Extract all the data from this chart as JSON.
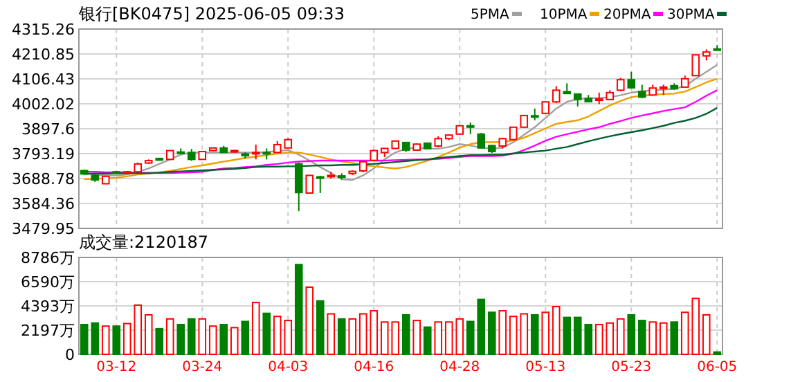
{
  "chart_data": [
    {
      "type": "candlestick",
      "title": "银行[BK0475] 2025-06-05 09:33",
      "categories": [
        null,
        null,
        null,
        null,
        null,
        null,
        null,
        null,
        null,
        null,
        null,
        null,
        null,
        null,
        null,
        null,
        null,
        null,
        null,
        null,
        null,
        null,
        null,
        null,
        null,
        null,
        null,
        null,
        null,
        null,
        null,
        null,
        null,
        null,
        null,
        null,
        null,
        null,
        null,
        null,
        null,
        null,
        null,
        null,
        null,
        null,
        null,
        null,
        null,
        null,
        null,
        null,
        null,
        null,
        null,
        null,
        null,
        null,
        null,
        null
      ],
      "ohlc": [
        [
          3722,
          3726,
          3704,
          3708
        ],
        [
          3702,
          3706,
          3675,
          3683
        ],
        [
          3667,
          3700,
          3665,
          3698
        ],
        [
          3717,
          3721,
          3711,
          3714
        ],
        [
          3711,
          3721,
          3709,
          3717
        ],
        [
          3717,
          3756,
          3715,
          3750
        ],
        [
          3754,
          3769,
          3750,
          3764
        ],
        [
          3773,
          3776,
          3765,
          3766
        ],
        [
          3769,
          3808,
          3767,
          3806
        ],
        [
          3800,
          3815,
          3790,
          3797
        ],
        [
          3798,
          3813,
          3763,
          3769
        ],
        [
          3769,
          3804,
          3767,
          3802
        ],
        [
          3806,
          3818,
          3804,
          3817
        ],
        [
          3817,
          3826,
          3796,
          3798
        ],
        [
          3802,
          3810,
          3798,
          3806
        ],
        [
          3792,
          3798,
          3773,
          3785
        ],
        [
          3795,
          3831,
          3769,
          3798
        ],
        [
          3798,
          3815,
          3769,
          3795
        ],
        [
          3798,
          3846,
          3796,
          3831
        ],
        [
          3817,
          3858,
          3815,
          3852
        ],
        [
          3750,
          3756,
          3552,
          3630
        ],
        [
          3628,
          3702,
          3625,
          3702
        ],
        [
          3696,
          3700,
          3628,
          3692
        ],
        [
          3698,
          3717,
          3688,
          3702
        ],
        [
          3700,
          3711,
          3685,
          3696
        ],
        [
          3710,
          3723,
          3704,
          3719
        ],
        [
          3721,
          3763,
          3715,
          3759
        ],
        [
          3765,
          3810,
          3763,
          3806
        ],
        [
          3798,
          3817,
          3779,
          3815
        ],
        [
          3815,
          3848,
          3812,
          3846
        ],
        [
          3840,
          3840,
          3800,
          3808
        ],
        [
          3808,
          3836,
          3806,
          3833
        ],
        [
          3837,
          3840,
          3812,
          3814
        ],
        [
          3825,
          3866,
          3820,
          3856
        ],
        [
          3856,
          3873,
          3850,
          3871
        ],
        [
          3875,
          3912,
          3872,
          3910
        ],
        [
          3910,
          3924,
          3875,
          3904
        ],
        [
          3875,
          3880,
          3815,
          3817
        ],
        [
          3827,
          3830,
          3796,
          3802
        ],
        [
          3825,
          3860,
          3815,
          3856
        ],
        [
          3852,
          3906,
          3850,
          3904
        ],
        [
          3904,
          3955,
          3902,
          3953
        ],
        [
          3952,
          3982,
          3933,
          3948
        ],
        [
          3962,
          4012,
          3960,
          4010
        ],
        [
          4010,
          4076,
          4005,
          4059
        ],
        [
          4053,
          4088,
          4043,
          4045
        ],
        [
          4043,
          4045,
          3991,
          4020
        ],
        [
          4024,
          4039,
          4008,
          4011
        ],
        [
          4018,
          4049,
          4001,
          4022
        ],
        [
          4020,
          4059,
          4018,
          4049
        ],
        [
          4059,
          4111,
          4055,
          4103
        ],
        [
          4103,
          4136,
          4066,
          4069
        ],
        [
          4053,
          4082,
          4025,
          4030
        ],
        [
          4039,
          4082,
          4037,
          4068
        ],
        [
          4068,
          4082,
          4039,
          4072
        ],
        [
          4078,
          4088,
          4060,
          4065
        ],
        [
          4072,
          4120,
          4070,
          4107
        ],
        [
          4120,
          4210,
          4118,
          4207
        ],
        [
          4203,
          4230,
          4184,
          4219
        ],
        [
          4232,
          4248,
          4226,
          4230
        ]
      ],
      "series": [
        {
          "name": "5PMA",
          "type": "line",
          "color": "#a0a0a0",
          "values": [
            3712,
            3706,
            3702,
            3702,
            3706,
            3717,
            3731,
            3750,
            3769,
            3789,
            3798,
            3798,
            3798,
            3798,
            3798,
            3798,
            3798,
            3800,
            3804,
            3808,
            3789,
            3764,
            3737,
            3712,
            3686,
            3683,
            3702,
            3731,
            3769,
            3798,
            3814,
            3818,
            3814,
            3814,
            3821,
            3833,
            3827,
            3818,
            3814,
            3818,
            3841,
            3872,
            3904,
            3943,
            3982,
            4010,
            4022,
            4026,
            4026,
            4030,
            4038,
            4049,
            4055,
            4059,
            4061,
            4065,
            4076,
            4107,
            4136,
            4165
          ]
        },
        {
          "name": "10PMA",
          "type": "line",
          "color": "#f0a000",
          "values": [
            3686,
            3688,
            3690,
            3692,
            3698,
            3706,
            3710,
            3715,
            3721,
            3729,
            3737,
            3744,
            3752,
            3760,
            3767,
            3775,
            3781,
            3787,
            3793,
            3798,
            3798,
            3789,
            3779,
            3769,
            3760,
            3754,
            3746,
            3740,
            3735,
            3731,
            3737,
            3750,
            3764,
            3779,
            3798,
            3818,
            3833,
            3841,
            3841,
            3843,
            3848,
            3860,
            3879,
            3899,
            3918,
            3926,
            3933,
            3949,
            3972,
            3995,
            4014,
            4030,
            4036,
            4039,
            4043,
            4045,
            4053,
            4072,
            4092,
            4107
          ]
        },
        {
          "name": "20PMA",
          "type": "line",
          "color": "#ff00ff",
          "values": [
            3717,
            3717,
            3715,
            3715,
            3715,
            3713,
            3713,
            3712,
            3712,
            3713,
            3715,
            3717,
            3725,
            3731,
            3733,
            3737,
            3740,
            3746,
            3750,
            3756,
            3760,
            3762,
            3764,
            3764,
            3764,
            3764,
            3764,
            3764,
            3764,
            3766,
            3767,
            3769,
            3769,
            3771,
            3775,
            3779,
            3783,
            3783,
            3783,
            3785,
            3793,
            3808,
            3827,
            3847,
            3864,
            3875,
            3885,
            3895,
            3904,
            3918,
            3930,
            3943,
            3953,
            3962,
            3972,
            3980,
            3987,
            4010,
            4036,
            4059
          ]
        },
        {
          "name": "30PMA",
          "type": "line",
          "color": "#006030",
          "values": [
            3708,
            3710,
            3710,
            3711,
            3711,
            3711,
            3711,
            3713,
            3717,
            3719,
            3721,
            3723,
            3725,
            3727,
            3729,
            3733,
            3737,
            3739,
            3739,
            3740,
            3740,
            3742,
            3744,
            3744,
            3746,
            3746,
            3748,
            3750,
            3754,
            3758,
            3762,
            3766,
            3769,
            3775,
            3779,
            3783,
            3787,
            3787,
            3789,
            3789,
            3794,
            3798,
            3802,
            3806,
            3814,
            3821,
            3833,
            3845,
            3856,
            3866,
            3875,
            3883,
            3891,
            3900,
            3910,
            3922,
            3931,
            3943,
            3960,
            3985
          ]
        }
      ],
      "ylim": [
        3479.95,
        4315.26
      ],
      "yticks": [
        3479.95,
        3584.36,
        3688.78,
        3793.19,
        3897.6,
        4002.02,
        4106.43,
        4210.85,
        4315.26
      ],
      "grid": true,
      "legend": "top right"
    },
    {
      "type": "bar",
      "title": "成交量:2120187",
      "categories": [
        null,
        null,
        null,
        "03-12",
        null,
        null,
        null,
        null,
        null,
        null,
        null,
        "03-24",
        null,
        null,
        null,
        null,
        null,
        null,
        null,
        "04-03",
        null,
        null,
        null,
        null,
        null,
        null,
        null,
        "04-16",
        null,
        null,
        null,
        null,
        null,
        null,
        null,
        "04-28",
        null,
        null,
        null,
        null,
        null,
        null,
        null,
        "05-13",
        null,
        null,
        null,
        null,
        null,
        null,
        null,
        "05-23",
        null,
        null,
        null,
        null,
        null,
        null,
        null,
        "06-05"
      ],
      "values": [
        2700,
        2840,
        2560,
        2560,
        2790,
        4460,
        3580,
        2330,
        3210,
        2700,
        3210,
        3210,
        2560,
        2700,
        2420,
        2980,
        4700,
        3720,
        3440,
        3070,
        8140,
        6090,
        4840,
        3670,
        3210,
        3210,
        3670,
        3950,
        2930,
        2930,
        3580,
        3070,
        2470,
        2930,
        2930,
        3210,
        2980,
        4980,
        3810,
        3950,
        3440,
        3670,
        3580,
        3810,
        4330,
        3350,
        3350,
        2700,
        2700,
        2840,
        3210,
        3580,
        3070,
        2930,
        2840,
        2930,
        3810,
        5070,
        3580,
        210
      ],
      "colors": [
        "#008000",
        "#008000",
        "#ff0000",
        "#008000",
        "#ff0000",
        "#ff0000",
        "#ff0000",
        "#008000",
        "#ff0000",
        "#008000",
        "#008000",
        "#ff0000",
        "#ff0000",
        "#008000",
        "#ff0000",
        "#008000",
        "#ff0000",
        "#008000",
        "#ff0000",
        "#ff0000",
        "#008000",
        "#ff0000",
        "#008000",
        "#ff0000",
        "#008000",
        "#ff0000",
        "#ff0000",
        "#ff0000",
        "#ff0000",
        "#ff0000",
        "#008000",
        "#ff0000",
        "#008000",
        "#ff0000",
        "#ff0000",
        "#ff0000",
        "#008000",
        "#008000",
        "#008000",
        "#ff0000",
        "#ff0000",
        "#ff0000",
        "#008000",
        "#ff0000",
        "#ff0000",
        "#008000",
        "#008000",
        "#008000",
        "#ff0000",
        "#ff0000",
        "#ff0000",
        "#008000",
        "#008000",
        "#ff0000",
        "#ff0000",
        "#008000",
        "#ff0000",
        "#ff0000",
        "#ff0000",
        "#008000"
      ],
      "ylim": [
        0,
        8786
      ],
      "yticks": [
        0,
        {
          "value": 2197,
          "label": "2197万"
        },
        {
          "value": 4393,
          "label": "4393万"
        },
        {
          "value": 6590,
          "label": "6590万"
        },
        {
          "value": 8786,
          "label": "8786万"
        }
      ],
      "grid": true
    }
  ]
}
